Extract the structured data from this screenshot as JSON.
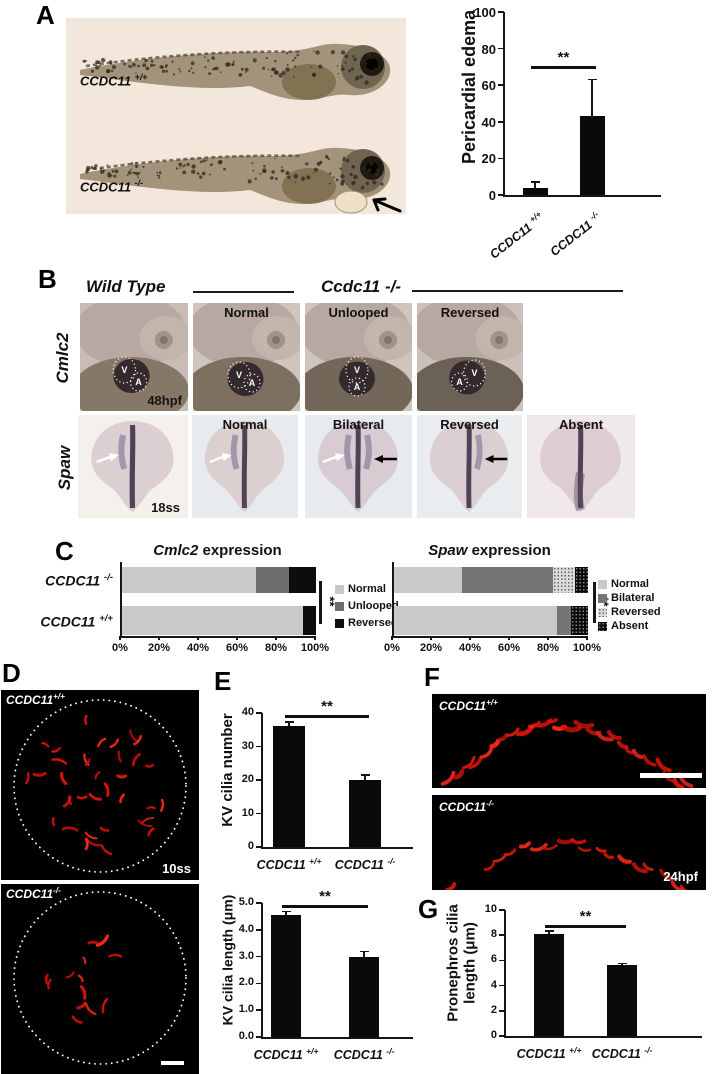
{
  "panels": {
    "a": {
      "label": "A",
      "embryos": [
        {
          "genotype": "CCDC11 +/+"
        },
        {
          "genotype": "CCDC11 -/-",
          "annotation": "arrow points to pericardial edema"
        }
      ]
    },
    "b": {
      "label": "B",
      "header_left": "Wild Type",
      "header_right": "Ccdc11 -/-",
      "ventricle_label": "V",
      "atrium_label": "A",
      "rows": [
        {
          "gene": "Cmlc2",
          "stage": "48hpf",
          "classifications": [
            "Normal",
            "Unlooped",
            "Reversed"
          ]
        },
        {
          "gene": "Spaw",
          "stage": "18ss",
          "classifications": [
            "Normal",
            "Bilateral",
            "Reversed",
            "Absent"
          ]
        }
      ]
    },
    "c": {
      "label": "C"
    },
    "d": {
      "label": "D",
      "images": [
        {
          "genotype": "CCDC11+/+",
          "stage": "10ss"
        },
        {
          "genotype": "CCDC11-/-"
        }
      ]
    },
    "e": {
      "label": "E"
    },
    "f": {
      "label": "F",
      "images": [
        {
          "genotype": "CCDC11+/+"
        },
        {
          "genotype": "CCDC11-/-",
          "stage": "24hpf"
        }
      ]
    },
    "g": {
      "label": "G"
    }
  },
  "icons": {
    "edema-arrow": "black arrow pointing at pericardial edema",
    "white-arrow": "white arrow marking left-sided spaw expression",
    "black-arrow": "black arrow marking right-sided spaw expression",
    "kv-dotted-circle": "white dotted outline of Kupffer's vesicle",
    "scale-bar": "white scale bar"
  },
  "colors": {
    "bar": "#0a0a0a",
    "cilia_red": "#df1208",
    "panel_a_background": "#f3e6da",
    "micrograph_background": "#000000"
  },
  "chart_data": [
    {
      "id": "pericardial_edema",
      "panel": "A",
      "type": "bar",
      "title": "",
      "ylabel": "Pericardial edema",
      "categories": [
        "CCDC11 +/+",
        "CCDC11 -/-"
      ],
      "values": [
        4,
        43
      ],
      "errors": [
        3,
        20
      ],
      "ylim": [
        0,
        100
      ],
      "yticks": [
        0,
        20,
        40,
        60,
        80,
        100
      ],
      "significance": "**",
      "bar_color": "#0a0a0a"
    },
    {
      "id": "cmlc2_expression",
      "panel": "C",
      "type": "stacked_bar_horizontal",
      "title": "Cmlc2 expression",
      "categories": [
        "CCDC11 -/-",
        "CCDC11 +/+"
      ],
      "series": [
        {
          "name": "Normal",
          "values": [
            69,
            93
          ],
          "color": "#c9c9c9"
        },
        {
          "name": "Unlooped",
          "values": [
            17,
            0
          ],
          "color": "#6e6e6e"
        },
        {
          "name": "Reversed",
          "values": [
            14,
            7
          ],
          "color": "#0d0d0d"
        }
      ],
      "xlim": [
        0,
        100
      ],
      "xticks": [
        "0%",
        "20%",
        "40%",
        "60%",
        "80%",
        "100%"
      ],
      "significance": "**",
      "legend_position": "right"
    },
    {
      "id": "spaw_expression",
      "panel": "C",
      "type": "stacked_bar_horizontal",
      "title": "Spaw expression",
      "categories": [
        "CCDC11 -/-",
        "CCDC11 +/+"
      ],
      "series": [
        {
          "name": "Normal",
          "values": [
            35,
            84
          ],
          "color": "#c9c9c9"
        },
        {
          "name": "Bilateral",
          "values": [
            47,
            7
          ],
          "color": "#757575"
        },
        {
          "name": "Reversed",
          "values": [
            11,
            0
          ],
          "color": "#dcdcdc",
          "pattern": "dots"
        },
        {
          "name": "Absent",
          "values": [
            7,
            9
          ],
          "color": "#0a0a0a",
          "pattern": "dots"
        }
      ],
      "xlim": [
        0,
        100
      ],
      "xticks": [
        "0%",
        "20%",
        "40%",
        "60%",
        "80%",
        "100%"
      ],
      "significance": "**",
      "legend_position": "right"
    },
    {
      "id": "kv_cilia_number",
      "panel": "E",
      "type": "bar",
      "title": "",
      "ylabel": "KV cilia number",
      "categories": [
        "CCDC11 +/+",
        "CCDC11 -/-"
      ],
      "values": [
        36,
        20
      ],
      "errors": [
        1.3,
        1.4
      ],
      "ylim": [
        0,
        40
      ],
      "yticks": [
        0,
        10,
        20,
        30,
        40
      ],
      "significance": "**",
      "bar_color": "#0a0a0a"
    },
    {
      "id": "kv_cilia_length",
      "panel": "E",
      "type": "bar",
      "title": "",
      "ylabel": "KV cilia length (μm)",
      "categories": [
        "CCDC11 +/+",
        "CCDC11 -/-"
      ],
      "values": [
        4.55,
        3.0
      ],
      "errors": [
        0.12,
        0.18
      ],
      "ylim": [
        0,
        5
      ],
      "yticks": [
        "0.0",
        "1.0",
        "2.0",
        "3.0",
        "4.0",
        "5.0"
      ],
      "significance": "**",
      "bar_color": "#0a0a0a"
    },
    {
      "id": "pronephros_cilia_length",
      "panel": "G",
      "type": "bar",
      "title": "",
      "ylabel": "Pronephros cilia length (μm)",
      "ylabel_lines": [
        "Pronephros cilia",
        "length (μm)"
      ],
      "categories": [
        "CCDC11 +/+",
        "CCDC11 -/-"
      ],
      "values": [
        8.1,
        5.6
      ],
      "errors": [
        0.2,
        0.12
      ],
      "ylim": [
        0,
        10
      ],
      "yticks": [
        0,
        2,
        4,
        6,
        8,
        10
      ],
      "significance": "**",
      "bar_color": "#0a0a0a"
    }
  ]
}
